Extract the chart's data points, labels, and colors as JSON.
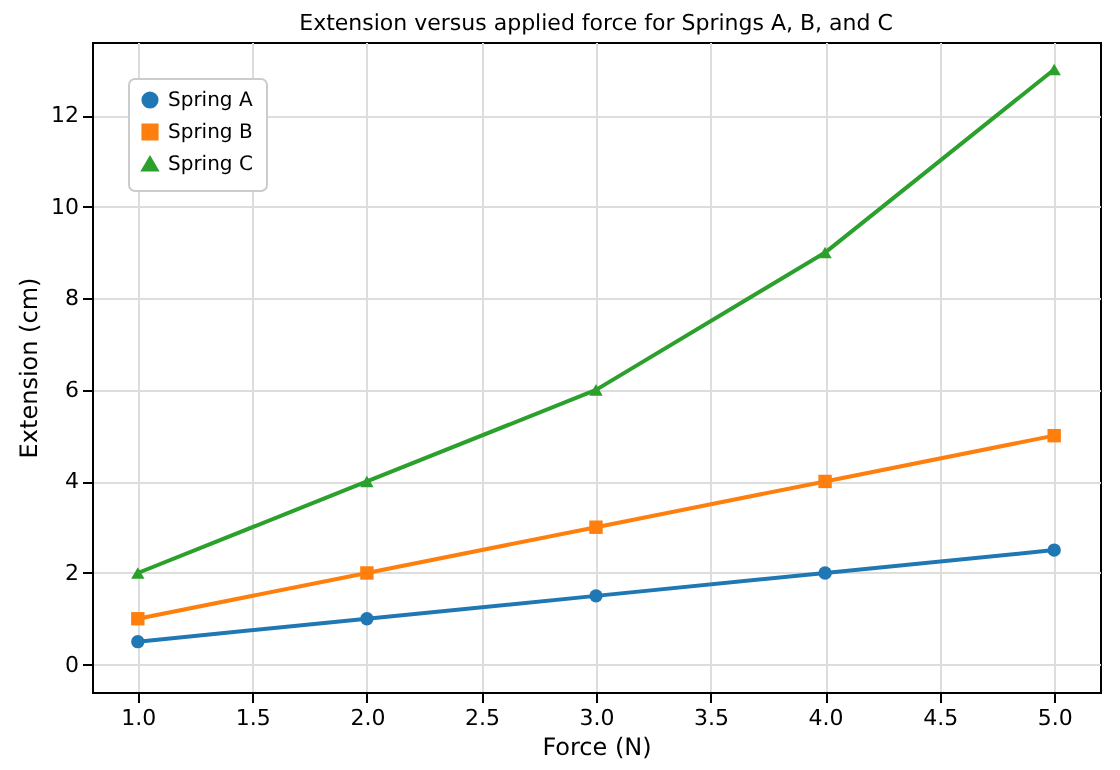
{
  "chart_data": {
    "type": "line",
    "title": "Extension versus applied force for Springs A, B, and C",
    "xlabel": "Force (N)",
    "ylabel": "Extension (cm)",
    "x": [
      1,
      2,
      3,
      4,
      5
    ],
    "series": [
      {
        "name": "Spring A",
        "color": "#1f77b4",
        "marker": "circle",
        "values": [
          0.5,
          1,
          1.5,
          2,
          2.5
        ]
      },
      {
        "name": "Spring B",
        "color": "#ff7f0e",
        "marker": "square",
        "values": [
          1,
          2,
          3,
          4,
          5
        ]
      },
      {
        "name": "Spring C",
        "color": "#2ca02c",
        "marker": "triangle",
        "values": [
          2,
          4,
          6,
          9,
          13
        ]
      }
    ],
    "xlim": [
      0.8,
      5.2
    ],
    "xticks": [
      {
        "value": 1,
        "label": "1.0"
      },
      {
        "value": 1.5,
        "label": "1.5"
      },
      {
        "value": 2,
        "label": "2.0"
      },
      {
        "value": 2.5,
        "label": "2.5"
      },
      {
        "value": 3,
        "label": "3.0"
      },
      {
        "value": 3.5,
        "label": "3.5"
      },
      {
        "value": 4,
        "label": "4.0"
      },
      {
        "value": 4.5,
        "label": "4.5"
      },
      {
        "value": 5,
        "label": "5.0"
      }
    ],
    "ylim": [
      -0.6,
      13.6
    ],
    "yticks": [
      0,
      2,
      4,
      6,
      8,
      10,
      12
    ],
    "grid": true,
    "legend": "top left",
    "line_style": "solid"
  }
}
